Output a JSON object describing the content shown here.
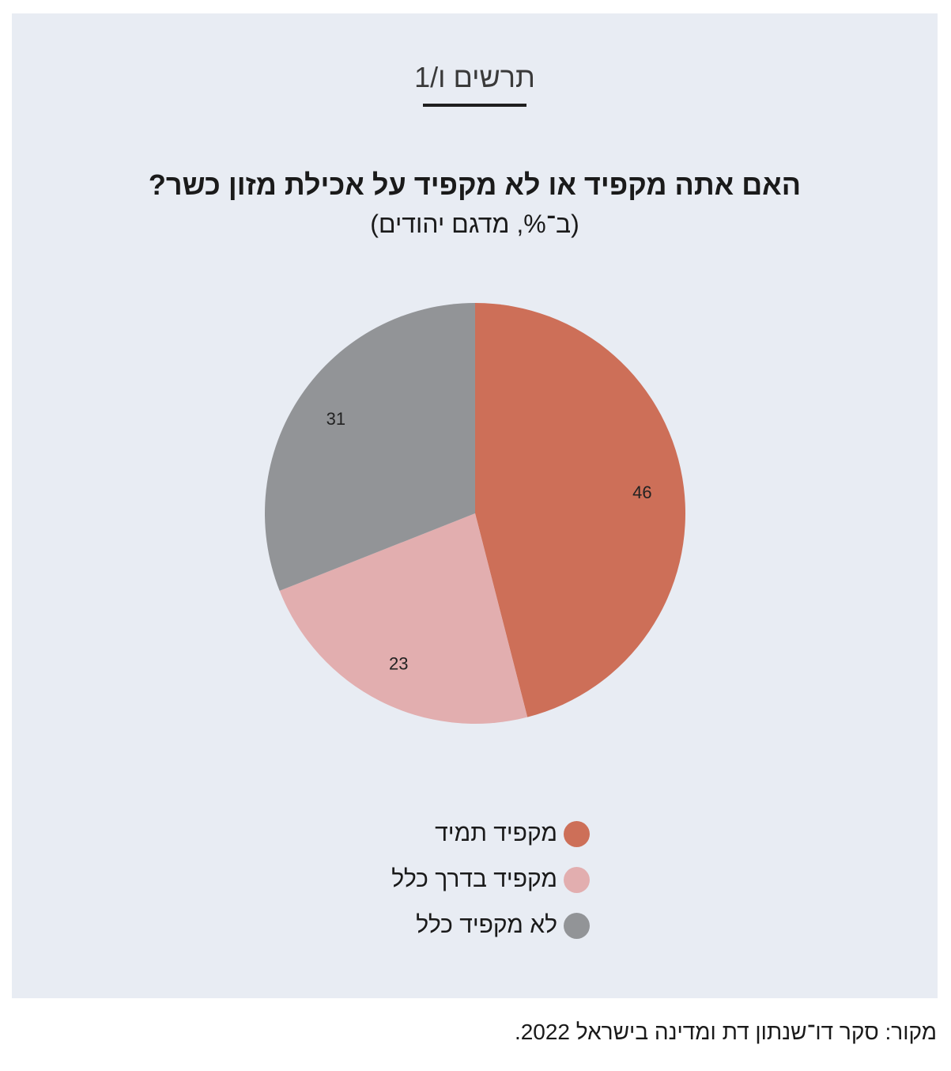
{
  "figure_label": "תרשים ו/1",
  "source": "מקור: סקר דו־שנתון דת ומדינה בישראל 2022.",
  "chart_data": {
    "type": "pie",
    "title": "האם אתה מקפיד או לא מקפיד על אכילת מזון כשר?",
    "subtitle": "(ב־%, מדגם יהודים)",
    "start_angle": "12 o'clock, clockwise",
    "slices": [
      {
        "label": "מקפיד תמיד",
        "value": 46,
        "color": "#cd6f58"
      },
      {
        "label": "מקפיד בדרך כלל",
        "value": 23,
        "color": "#e2aeaf"
      },
      {
        "label": "לא מקפיד כלל",
        "value": 31,
        "color": "#929497"
      }
    ],
    "legend_position": "bottom"
  }
}
